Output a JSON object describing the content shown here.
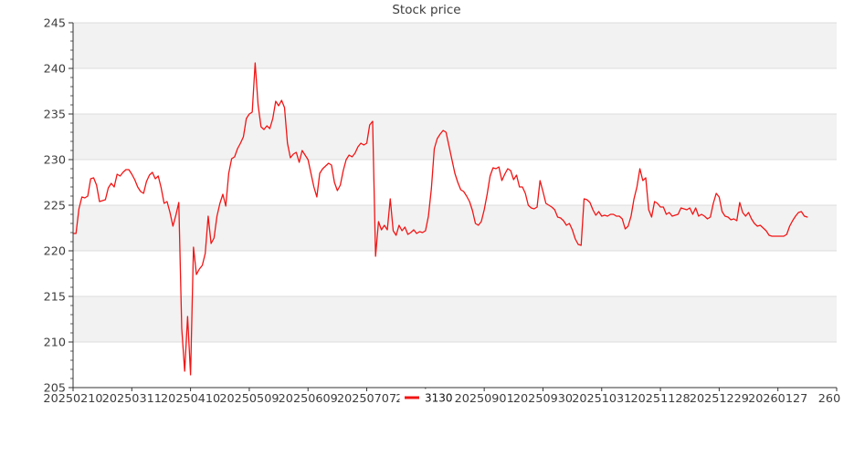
{
  "page": {
    "title": "Stock price"
  },
  "chart_data": {
    "type": "line",
    "title": "Stock price",
    "legend_label": "3130",
    "legend_position": "lower center",
    "grid": "horizontal gridlines at major ticks, alternating gray bands every 5 units",
    "xlim": [
      0,
      260
    ],
    "ylim": [
      205,
      245
    ],
    "x_tick_indices": [
      0,
      20,
      40,
      60,
      80,
      100,
      120,
      140,
      160,
      180,
      200,
      220,
      240,
      260
    ],
    "x_tick_labels": [
      "20250210",
      "20250311",
      "20250410",
      "20250509",
      "20250609",
      "20250707",
      "20250808",
      "20250901",
      "20250930",
      "20251031",
      "20251128",
      "20251229",
      "20260127",
      "260"
    ],
    "label_covered_by_legend": "20250808",
    "y_tick_labels": [
      "245",
      "240",
      "235",
      "230",
      "225",
      "220",
      "215",
      "210",
      "205"
    ],
    "y_ticks": [
      245,
      240,
      235,
      230,
      225,
      220,
      215,
      210,
      205
    ],
    "colors": {
      "line": "#f21414",
      "band": "#f2f2f2",
      "gridline": "#dcdcdc",
      "spine": "#333333",
      "tick": "#333333",
      "tick_label": "#3c3c3c",
      "title": "#3c3c3c",
      "legend_text": "#111111",
      "background": "#ffffff",
      "legend_background": "#ffffff"
    },
    "series": [
      {
        "name": "3130",
        "x_start_index": 0,
        "values": [
          221.9,
          221.9,
          224.6,
          225.9,
          225.8,
          226.0,
          227.9,
          228.0,
          227.2,
          225.4,
          225.5,
          225.6,
          226.9,
          227.4,
          227.0,
          228.4,
          228.2,
          228.6,
          228.9,
          228.9,
          228.4,
          227.8,
          227.0,
          226.5,
          226.3,
          227.6,
          228.3,
          228.6,
          227.9,
          228.2,
          226.9,
          225.2,
          225.4,
          224.2,
          222.7,
          223.9,
          225.3,
          211.5,
          206.8,
          212.8,
          206.4,
          220.4,
          217.4,
          218.0,
          218.4,
          219.7,
          223.8,
          220.8,
          221.4,
          223.8,
          225.2,
          226.2,
          224.9,
          228.5,
          230.1,
          230.3,
          231.2,
          231.8,
          232.5,
          234.5,
          235.0,
          235.2,
          240.6,
          236.0,
          233.6,
          233.3,
          233.7,
          233.4,
          234.5,
          236.4,
          235.9,
          236.5,
          235.7,
          231.8,
          230.2,
          230.6,
          230.8,
          229.7,
          231.0,
          230.5,
          230.0,
          228.5,
          227.0,
          225.9,
          228.5,
          229.0,
          229.3,
          229.6,
          229.4,
          227.5,
          226.6,
          227.2,
          228.8,
          230.0,
          230.5,
          230.3,
          230.7,
          231.4,
          231.8,
          231.6,
          231.8,
          233.8,
          234.2,
          219.4,
          223.2,
          222.3,
          222.8,
          222.3,
          225.7,
          222.2,
          221.7,
          222.8,
          222.2,
          222.6,
          221.8,
          222.0,
          222.3,
          221.9,
          222.1,
          222.0,
          222.2,
          223.8,
          226.8,
          231.2,
          232.3,
          232.8,
          233.2,
          233.0,
          231.5,
          230.0,
          228.5,
          227.5,
          226.7,
          226.5,
          226.0,
          225.4,
          224.4,
          223.0,
          222.8,
          223.2,
          224.5,
          226.2,
          228.2,
          229.1,
          229.0,
          229.2,
          227.7,
          228.4,
          229.0,
          228.8,
          227.8,
          228.3,
          227.0,
          227.0,
          226.3,
          225.0,
          224.7,
          224.6,
          224.8,
          227.7,
          226.5,
          225.2,
          225.0,
          224.8,
          224.5,
          223.7,
          223.6,
          223.3,
          222.8,
          223.0,
          222.3,
          221.3,
          220.7,
          220.6,
          225.7,
          225.6,
          225.3,
          224.5,
          223.9,
          224.3,
          223.8,
          223.9,
          223.8,
          224.0,
          224.0,
          223.8,
          223.8,
          223.5,
          222.4,
          222.7,
          223.8,
          225.7,
          227.0,
          229.0,
          227.7,
          228.0,
          224.5,
          223.7,
          225.4,
          225.2,
          224.8,
          224.8,
          224.0,
          224.2,
          223.8,
          223.9,
          224.0,
          224.7,
          224.6,
          224.5,
          224.7,
          224.0,
          224.7,
          223.8,
          224.0,
          223.8,
          223.5,
          223.7,
          225.2,
          226.3,
          225.9,
          224.3,
          223.8,
          223.7,
          223.4,
          223.5,
          223.3,
          225.3,
          224.2,
          223.8,
          224.2,
          223.5,
          223.0,
          222.7,
          222.8,
          222.5,
          222.2,
          221.7,
          221.6,
          221.6,
          221.6,
          221.6,
          221.6,
          221.8,
          222.7,
          223.3,
          223.8,
          224.2,
          224.3,
          223.8,
          223.7
        ]
      }
    ]
  }
}
